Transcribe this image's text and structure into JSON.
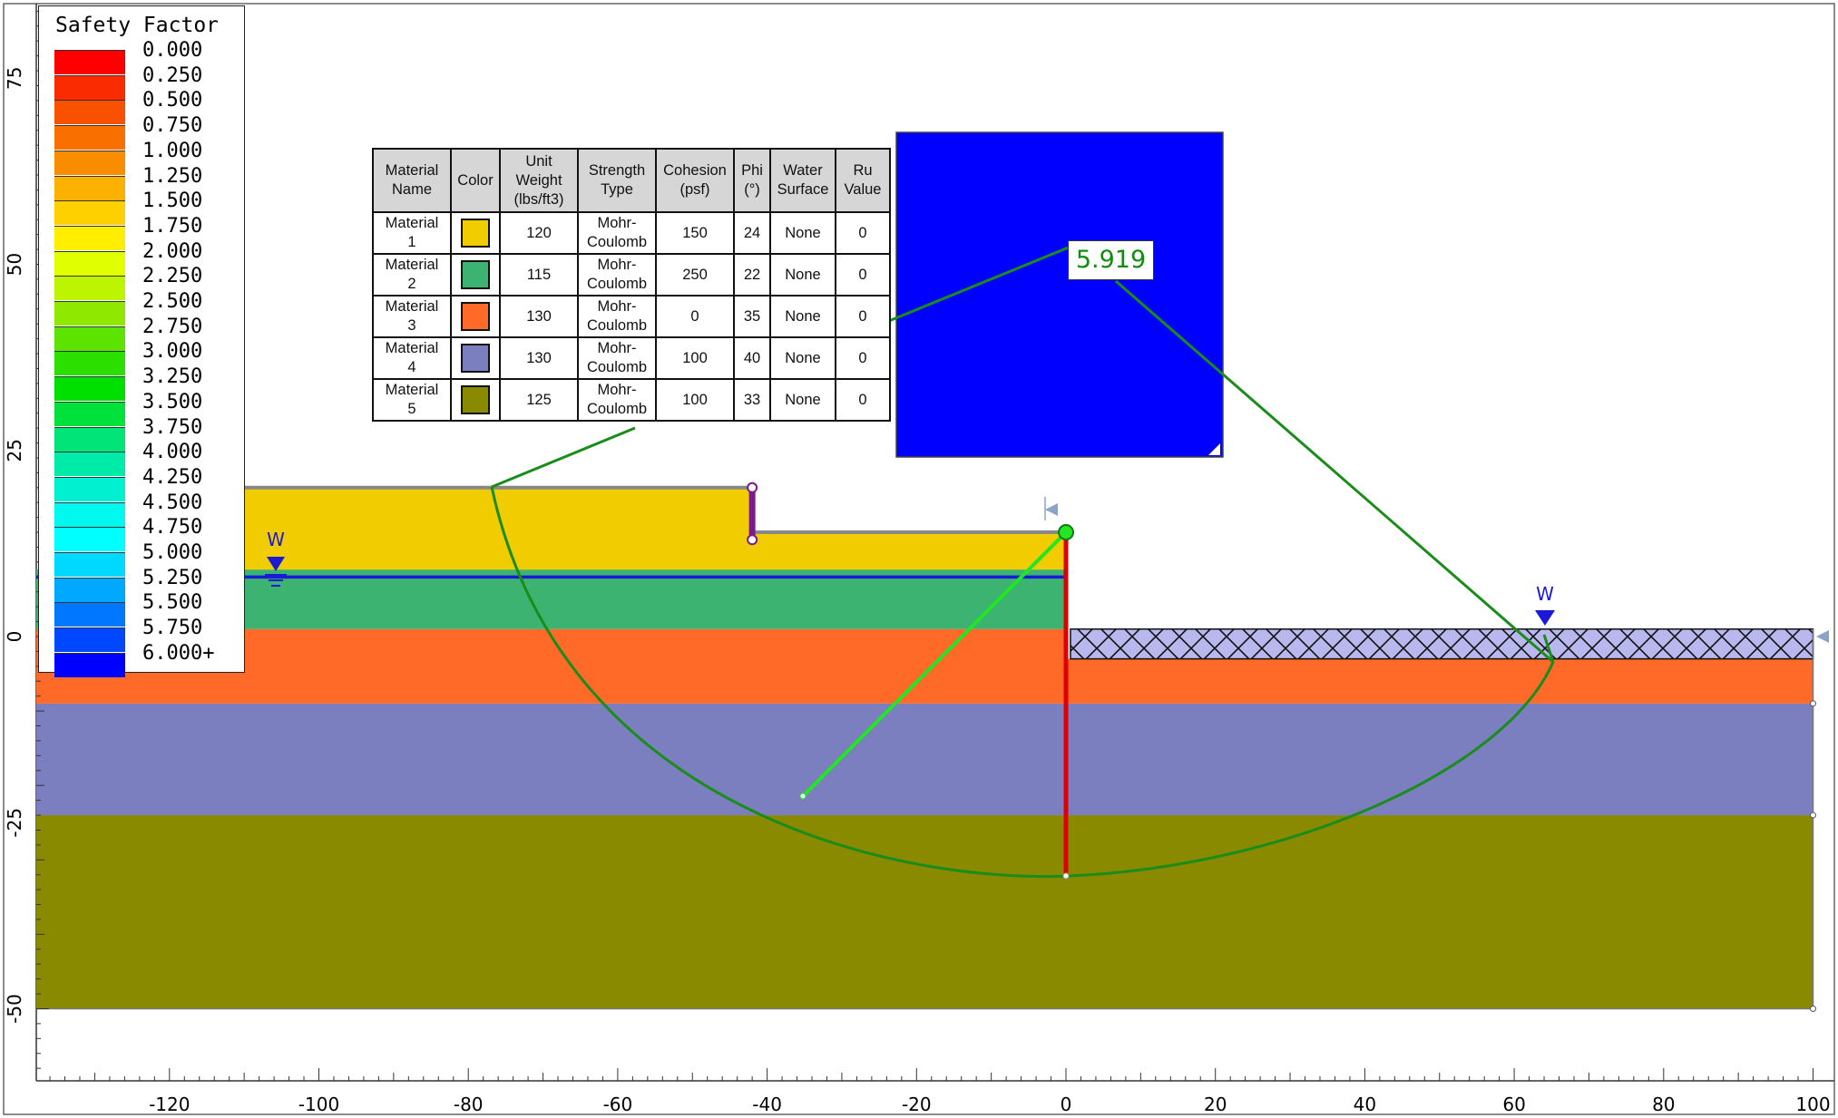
{
  "legend": {
    "title": "Safety Factor",
    "entries": [
      {
        "value": "0.000",
        "color": "#ff0000"
      },
      {
        "value": "0.250",
        "color": "#fb2b00"
      },
      {
        "value": "0.500",
        "color": "#f85200"
      },
      {
        "value": "0.750",
        "color": "#f96f00"
      },
      {
        "value": "1.000",
        "color": "#fa8c00"
      },
      {
        "value": "1.250",
        "color": "#fcb000"
      },
      {
        "value": "1.500",
        "color": "#ffd000"
      },
      {
        "value": "1.750",
        "color": "#ffee00"
      },
      {
        "value": "2.000",
        "color": "#e0ff00"
      },
      {
        "value": "2.250",
        "color": "#bdf500"
      },
      {
        "value": "2.500",
        "color": "#8ee800"
      },
      {
        "value": "2.750",
        "color": "#5ce400"
      },
      {
        "value": "3.000",
        "color": "#2be000"
      },
      {
        "value": "3.250",
        "color": "#00e000"
      },
      {
        "value": "3.500",
        "color": "#00e13c"
      },
      {
        "value": "3.750",
        "color": "#00e478"
      },
      {
        "value": "4.000",
        "color": "#00eba8"
      },
      {
        "value": "4.250",
        "color": "#00f0d0"
      },
      {
        "value": "4.500",
        "color": "#00f8ef"
      },
      {
        "value": "4.750",
        "color": "#00ffff"
      },
      {
        "value": "5.000",
        "color": "#00d9ff"
      },
      {
        "value": "5.250",
        "color": "#00a8ff"
      },
      {
        "value": "5.500",
        "color": "#0077ff"
      },
      {
        "value": "5.750",
        "color": "#0048ff"
      },
      {
        "value": "6.000+",
        "color": "#0000ff"
      }
    ]
  },
  "axes": {
    "x_ticks": [
      "-120",
      "-100",
      "-80",
      "-60",
      "-40",
      "-20",
      "0",
      "20",
      "40",
      "60",
      "80",
      "100"
    ],
    "y_ticks": [
      "75",
      "50",
      "25",
      "0",
      "-25",
      "-50"
    ]
  },
  "materials_table": {
    "headers": {
      "name": [
        "Material",
        "Name"
      ],
      "color": [
        "Color"
      ],
      "unit_weight": [
        "Unit",
        "Weight",
        "(lbs/ft3)"
      ],
      "strength_type": [
        "Strength",
        "Type"
      ],
      "cohesion": [
        "Cohesion",
        "(psf)"
      ],
      "phi": [
        "Phi",
        "(°)"
      ],
      "water_surface": [
        "Water",
        "Surface"
      ],
      "ru": [
        "Ru",
        "Value"
      ]
    },
    "rows": [
      {
        "name": [
          "Material",
          "1"
        ],
        "color": "#f0cc00",
        "unit_weight": "120",
        "strength_type": [
          "Mohr-",
          "Coulomb"
        ],
        "cohesion": "150",
        "phi": "24",
        "water_surface": "None",
        "ru": "0"
      },
      {
        "name": [
          "Material",
          "2"
        ],
        "color": "#3cb371",
        "unit_weight": "115",
        "strength_type": [
          "Mohr-",
          "Coulomb"
        ],
        "cohesion": "250",
        "phi": "22",
        "water_surface": "None",
        "ru": "0"
      },
      {
        "name": [
          "Material",
          "3"
        ],
        "color": "#ff6a28",
        "unit_weight": "130",
        "strength_type": [
          "Mohr-",
          "Coulomb"
        ],
        "cohesion": "0",
        "phi": "35",
        "water_surface": "None",
        "ru": "0"
      },
      {
        "name": [
          "Material",
          "4"
        ],
        "color": "#7b7fbf",
        "unit_weight": "130",
        "strength_type": [
          "Mohr-",
          "Coulomb"
        ],
        "cohesion": "100",
        "phi": "40",
        "water_surface": "None",
        "ru": "0"
      },
      {
        "name": [
          "Material",
          "5"
        ],
        "color": "#8a8a00",
        "unit_weight": "125",
        "strength_type": [
          "Mohr-",
          "Coulomb"
        ],
        "cohesion": "100",
        "phi": "33",
        "water_surface": "None",
        "ru": "0"
      }
    ]
  },
  "safety_factor": "5.919",
  "water_label": "W",
  "colors": {
    "material_1": "#f0cc00",
    "material_2": "#3cb371",
    "material_3": "#ff6a28",
    "material_4": "#7b7fbf",
    "material_5": "#8a8a00",
    "surcharge_fill": "#b8b8ee",
    "water_line": "#1a1ad6",
    "slip_surface": "#1a8c1a",
    "radius_line": "#22e622",
    "wall": "#dd0000",
    "anchor": "#7b1a8c",
    "fos_box": "#0000ff"
  }
}
